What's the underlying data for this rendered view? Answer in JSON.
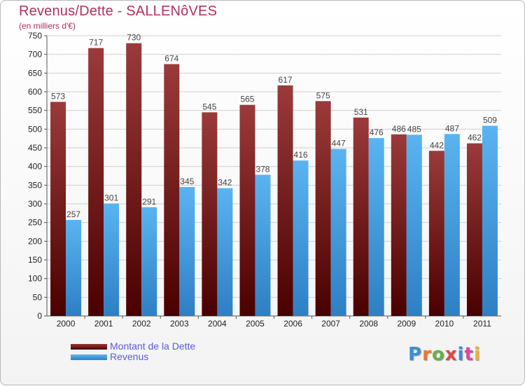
{
  "title": "Revenus/Dette - SALLENôVES",
  "subtitle": "(en milliers d'€)",
  "logo": {
    "text": "Proxiti",
    "colors": [
      "#3a8fd8",
      "#e8792e",
      "#6ab04c",
      "#e04848",
      "#3a8fd8",
      "#d84a9a",
      "#f0b030"
    ]
  },
  "colors": {
    "dette_top": "#9b3a3a",
    "dette_bottom": "#4a0000",
    "revenus_top": "#5ab4f0",
    "revenus_bottom": "#2e7fc4",
    "grid": "#cfcfcf",
    "axis_text": "#222222",
    "value_text": "#444444"
  },
  "chart_data": {
    "type": "bar",
    "title": "Revenus/Dette - SALLENôVES",
    "ylabel": "(en milliers d'€)",
    "xlabel": "",
    "ylim": [
      0,
      750
    ],
    "y_ticks": [
      0,
      50,
      100,
      150,
      200,
      250,
      300,
      350,
      400,
      450,
      500,
      550,
      600,
      650,
      700,
      750
    ],
    "grid": true,
    "legend_position": "bottom-left",
    "categories": [
      "2000",
      "2001",
      "2002",
      "2003",
      "2004",
      "2005",
      "2006",
      "2007",
      "2008",
      "2009",
      "2010",
      "2011"
    ],
    "series": [
      {
        "name": "Montant de la Dette",
        "values": [
          573,
          717,
          730,
          674,
          545,
          565,
          617,
          575,
          531,
          486,
          442,
          462
        ]
      },
      {
        "name": "Revenus",
        "values": [
          257,
          301,
          291,
          345,
          342,
          378,
          416,
          447,
          476,
          485,
          487,
          509
        ]
      }
    ]
  }
}
